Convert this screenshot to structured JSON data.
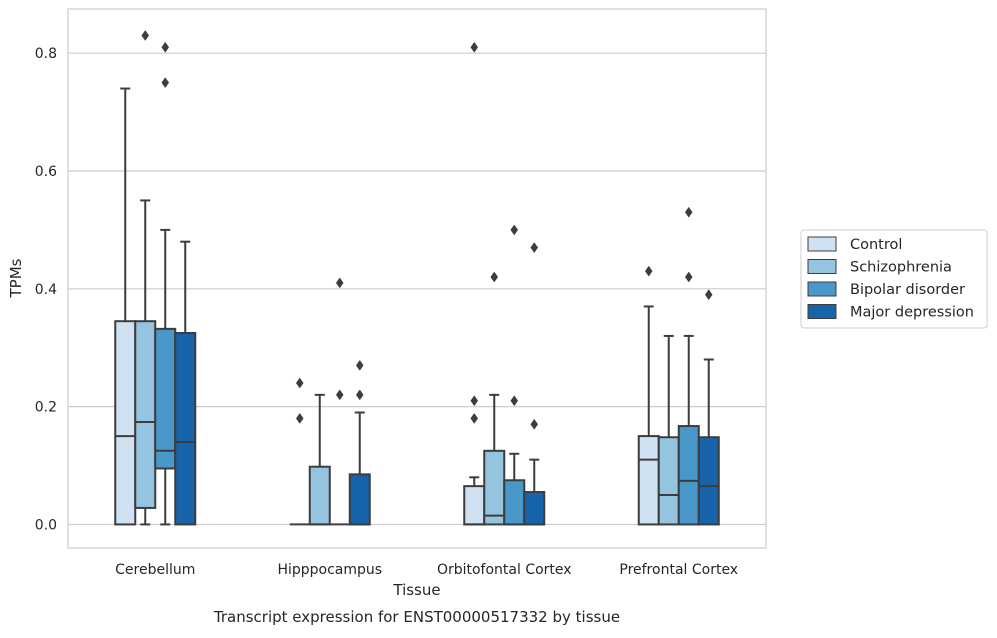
{
  "chart_data": {
    "type": "box",
    "xlabel": "Tissue",
    "ylabel": "TPMs",
    "caption": "Transcript expression for ENST00000517332 by tissue",
    "ylim": [
      -0.04,
      0.875
    ],
    "yticks": [
      0.0,
      0.2,
      0.4,
      0.6,
      0.8
    ],
    "ytick_labels": [
      "0.0",
      "0.2",
      "0.4",
      "0.6",
      "0.8"
    ],
    "grid": true,
    "legend_position": "right",
    "categories": [
      "Cerebellum",
      "Hipppocampus",
      "Orbitofontal Cortex",
      "Prefrontal Cortex"
    ],
    "series": [
      {
        "name": "Control",
        "color": "#d0e1f1",
        "boxes": [
          {
            "q1": 0.0,
            "median": 0.15,
            "q3": 0.345,
            "whisker_low": 0.0,
            "whisker_high": 0.74,
            "outliers": []
          },
          {
            "q1": 0.0,
            "median": 0.0,
            "q3": 0.0,
            "whisker_low": 0.0,
            "whisker_high": 0.0,
            "outliers": [
              0.18,
              0.24
            ]
          },
          {
            "q1": 0.0,
            "median": 0.0,
            "q3": 0.065,
            "whisker_low": 0.0,
            "whisker_high": 0.08,
            "outliers": [
              0.18,
              0.21,
              0.81
            ]
          },
          {
            "q1": 0.0,
            "median": 0.11,
            "q3": 0.15,
            "whisker_low": 0.0,
            "whisker_high": 0.37,
            "outliers": [
              0.43
            ]
          }
        ]
      },
      {
        "name": "Schizophrenia",
        "color": "#94c4df",
        "boxes": [
          {
            "q1": 0.028,
            "median": 0.174,
            "q3": 0.345,
            "whisker_low": 0.0,
            "whisker_high": 0.55,
            "outliers": [
              0.83
            ]
          },
          {
            "q1": 0.0,
            "median": 0.0,
            "q3": 0.098,
            "whisker_low": 0.0,
            "whisker_high": 0.22,
            "outliers": []
          },
          {
            "q1": 0.0,
            "median": 0.015,
            "q3": 0.125,
            "whisker_low": 0.0,
            "whisker_high": 0.22,
            "outliers": [
              0.42
            ]
          },
          {
            "q1": 0.0,
            "median": 0.05,
            "q3": 0.148,
            "whisker_low": 0.0,
            "whisker_high": 0.32,
            "outliers": []
          }
        ]
      },
      {
        "name": "Bipolar disorder",
        "color": "#4a98c9",
        "boxes": [
          {
            "q1": 0.095,
            "median": 0.125,
            "q3": 0.332,
            "whisker_low": 0.0,
            "whisker_high": 0.5,
            "outliers": [
              0.75,
              0.81
            ]
          },
          {
            "q1": 0.0,
            "median": 0.0,
            "q3": 0.0,
            "whisker_low": 0.0,
            "whisker_high": 0.0,
            "outliers": [
              0.22,
              0.41
            ]
          },
          {
            "q1": 0.0,
            "median": 0.0,
            "q3": 0.075,
            "whisker_low": 0.0,
            "whisker_high": 0.12,
            "outliers": [
              0.21,
              0.5
            ]
          },
          {
            "q1": 0.0,
            "median": 0.074,
            "q3": 0.167,
            "whisker_low": 0.0,
            "whisker_high": 0.32,
            "outliers": [
              0.42,
              0.53
            ]
          }
        ]
      },
      {
        "name": "Major depression",
        "color": "#1764ab",
        "boxes": [
          {
            "q1": 0.0,
            "median": 0.14,
            "q3": 0.325,
            "whisker_low": 0.0,
            "whisker_high": 0.48,
            "outliers": []
          },
          {
            "q1": 0.0,
            "median": 0.0,
            "q3": 0.085,
            "whisker_low": 0.0,
            "whisker_high": 0.19,
            "outliers": [
              0.22,
              0.27
            ]
          },
          {
            "q1": 0.0,
            "median": 0.0,
            "q3": 0.055,
            "whisker_low": 0.0,
            "whisker_high": 0.11,
            "outliers": [
              0.17,
              0.47
            ]
          },
          {
            "q1": 0.0,
            "median": 0.065,
            "q3": 0.148,
            "whisker_low": 0.0,
            "whisker_high": 0.28,
            "outliers": [
              0.39
            ]
          }
        ]
      }
    ]
  }
}
